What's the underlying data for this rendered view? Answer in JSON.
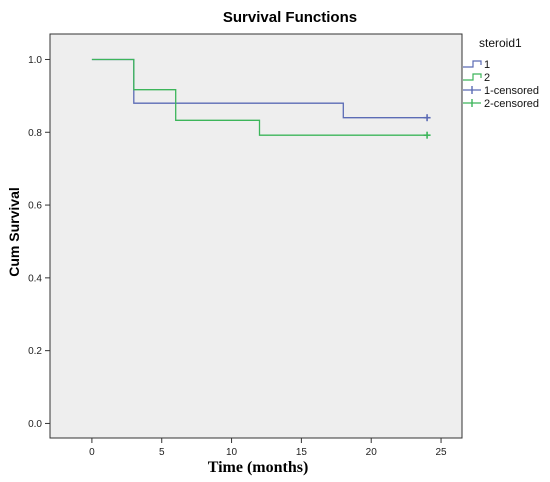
{
  "chart_data": {
    "type": "line",
    "title": "Survival Functions",
    "xlabel": "Time (months)",
    "ylabel": "Cum Survival",
    "xlim": [
      -3,
      26.5
    ],
    "ylim": [
      -0.04,
      1.07
    ],
    "xticks": [
      0,
      5,
      10,
      15,
      20,
      25
    ],
    "yticks": [
      0.0,
      0.2,
      0.4,
      0.6,
      0.8,
      1.0
    ],
    "ytick_labels": [
      "0.0",
      "0.2",
      "0.4",
      "0.6",
      "0.8",
      "1.0"
    ],
    "legend": {
      "title": "steroid1",
      "position": "outside-right",
      "entries": [
        "1",
        "2",
        "1-censored",
        "2-censored"
      ]
    },
    "series": [
      {
        "name": "1",
        "color": "#5b6bb5",
        "step_x": [
          0,
          3,
          3,
          18,
          18,
          24
        ],
        "step_y": [
          1.0,
          1.0,
          0.88,
          0.88,
          0.84,
          0.84
        ],
        "censored": [
          {
            "x": 24,
            "y": 0.84
          }
        ]
      },
      {
        "name": "2",
        "color": "#3cb55a",
        "step_x": [
          0,
          3,
          3,
          6,
          6,
          12,
          12,
          24
        ],
        "step_y": [
          1.0,
          1.0,
          0.917,
          0.917,
          0.833,
          0.833,
          0.792,
          0.792
        ],
        "censored": [
          {
            "x": 24,
            "y": 0.792
          }
        ]
      }
    ],
    "plot_background": "#eeeeee",
    "grid": false
  }
}
